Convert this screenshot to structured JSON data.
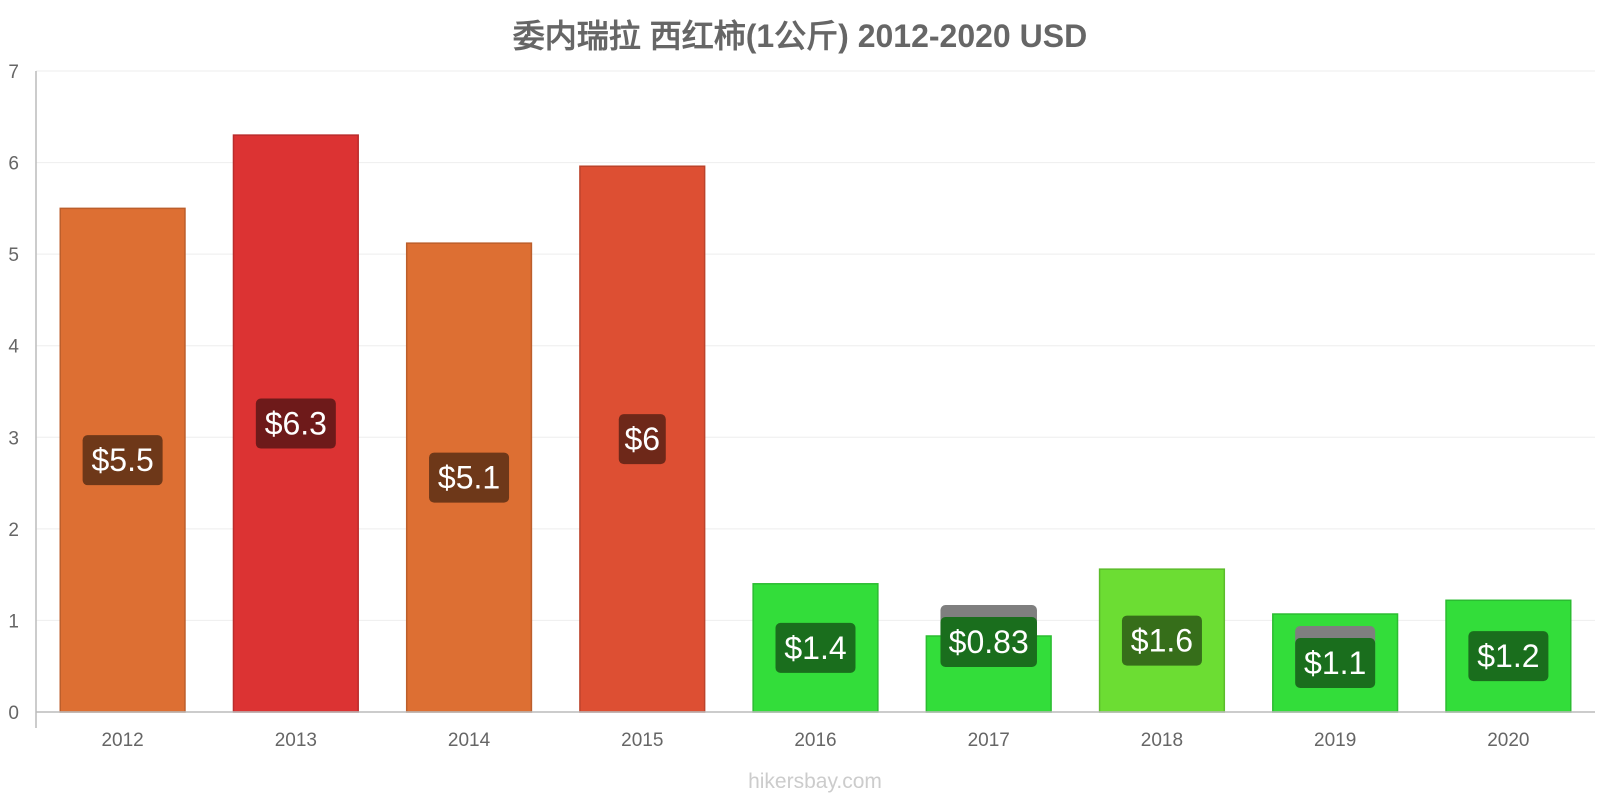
{
  "chart_data": {
    "type": "bar",
    "title": "委内瑞拉 西红柿(1公斤) 2012-2020 USD",
    "xlabel": "",
    "ylabel": "",
    "ylim": [
      0,
      7
    ],
    "yticks": [
      0,
      1,
      2,
      3,
      4,
      5,
      6,
      7
    ],
    "grid": true,
    "legend": "none",
    "categories": [
      "2012",
      "2013",
      "2014",
      "2015",
      "2016",
      "2017",
      "2018",
      "2019",
      "2020"
    ],
    "values": [
      5.5,
      6.3,
      5.12,
      5.96,
      1.4,
      0.83,
      1.56,
      1.07,
      1.22
    ],
    "data_labels": [
      "$5.5",
      "$6.3",
      "$5.1",
      "$6",
      "$1.4",
      "$0.83",
      "$1.6",
      "$1.1",
      "$1.2"
    ],
    "bar_colors": [
      "#dd6f33",
      "#dc3333",
      "#dd6f33",
      "#dd4f33",
      "#33dd3a",
      "#33dd3a",
      "#6cdd33",
      "#33dd3a",
      "#33dd3a"
    ],
    "label_colors": [
      "#6e3819",
      "#6e1a1a",
      "#6e3819",
      "#6e2819",
      "#1a6e1d",
      "#1a6e1d",
      "#366e1a",
      "#1a6e1d",
      "#1a6e1d"
    ],
    "watermark": "hikersbay.com"
  }
}
